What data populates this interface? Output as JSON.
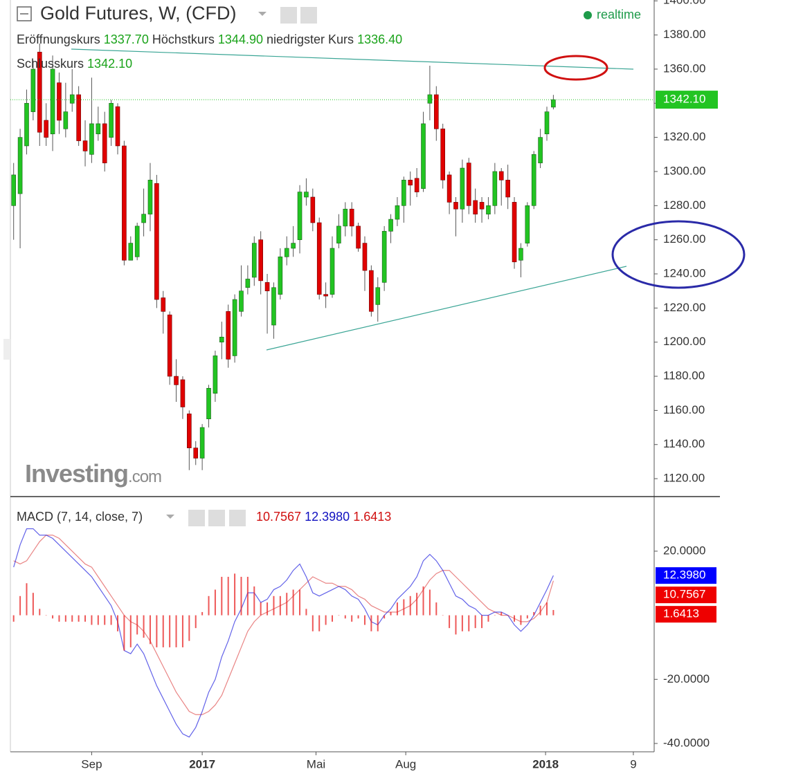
{
  "chart_data": [
    {
      "type": "candlestick",
      "title": "Gold Futures, W, (CFD)",
      "status": "realtime",
      "legend": [
        {
          "name": "Eröffnungskurs",
          "value": 1337.7,
          "label": "1337.70"
        },
        {
          "name": "Höchstkurs",
          "value": 1344.9,
          "label": "1344.90"
        },
        {
          "name": "niedrigster Kurs",
          "value": 1336.4,
          "label": "1336.40"
        },
        {
          "name": "Schlusskurs",
          "value": 1342.1,
          "label": "1342.10"
        }
      ],
      "watermark": {
        "name": "Investing",
        "suffix": ".com"
      },
      "colors": {
        "up": "#22c422",
        "down": "#e00000"
      },
      "last_label": "1342.10",
      "open": [
        1280,
        1287,
        1315,
        1335,
        1370,
        1330,
        1322,
        1352,
        1325,
        1340,
        1345,
        1318,
        1310,
        1322,
        1328,
        1320,
        1338,
        1315,
        1248,
        1250,
        1270,
        1275,
        1293,
        1226,
        1216,
        1180,
        1178,
        1158,
        1138,
        1132,
        1155,
        1170,
        1200,
        1218,
        1192,
        1218,
        1232,
        1238,
        1260,
        1235,
        1210,
        1228,
        1250,
        1255,
        1260,
        1285,
        1285,
        1270,
        1228,
        1228,
        1258,
        1268,
        1278,
        1268,
        1258,
        1242,
        1222,
        1235,
        1265,
        1272,
        1280,
        1295,
        1296,
        1290,
        1340,
        1345,
        1325,
        1298,
        1282,
        1278,
        1305,
        1283,
        1282,
        1275,
        1280,
        1300,
        1295,
        1282,
        1248,
        1258,
        1280,
        1305,
        1322,
        1337.7
      ],
      "high": [
        1305,
        1325,
        1348,
        1365,
        1375,
        1340,
        1368,
        1358,
        1352,
        1360,
        1350,
        1330,
        1355,
        1338,
        1335,
        1342,
        1340,
        1318,
        1262,
        1270,
        1290,
        1305,
        1298,
        1230,
        1218,
        1190,
        1180,
        1160,
        1142,
        1152,
        1175,
        1195,
        1212,
        1222,
        1228,
        1245,
        1245,
        1262,
        1265,
        1240,
        1235,
        1255,
        1262,
        1268,
        1292,
        1296,
        1290,
        1273,
        1235,
        1262,
        1275,
        1282,
        1282,
        1270,
        1262,
        1245,
        1238,
        1268,
        1275,
        1285,
        1297,
        1300,
        1302,
        1335,
        1362,
        1350,
        1328,
        1300,
        1285,
        1307,
        1308,
        1290,
        1285,
        1285,
        1305,
        1302,
        1304,
        1285,
        1258,
        1282,
        1312,
        1325,
        1338,
        1344.9
      ],
      "low": [
        1260,
        1255,
        1310,
        1330,
        1315,
        1315,
        1312,
        1322,
        1320,
        1335,
        1315,
        1303,
        1305,
        1318,
        1300,
        1315,
        1310,
        1245,
        1248,
        1248,
        1262,
        1265,
        1220,
        1205,
        1175,
        1165,
        1155,
        1125,
        1128,
        1125,
        1150,
        1165,
        1190,
        1185,
        1188,
        1215,
        1228,
        1233,
        1228,
        1205,
        1202,
        1225,
        1245,
        1250,
        1252,
        1280,
        1265,
        1225,
        1220,
        1226,
        1255,
        1262,
        1262,
        1253,
        1230,
        1215,
        1212,
        1230,
        1258,
        1268,
        1270,
        1280,
        1285,
        1288,
        1330,
        1318,
        1290,
        1275,
        1262,
        1270,
        1275,
        1270,
        1270,
        1272,
        1275,
        1280,
        1278,
        1243,
        1238,
        1256,
        1278,
        1302,
        1318,
        1336.4
      ],
      "close": [
        1298,
        1320,
        1340,
        1360,
        1323,
        1320,
        1360,
        1330,
        1335,
        1345,
        1318,
        1312,
        1328,
        1328,
        1305,
        1340,
        1315,
        1248,
        1258,
        1268,
        1275,
        1295,
        1225,
        1218,
        1180,
        1175,
        1162,
        1138,
        1132,
        1150,
        1173,
        1192,
        1203,
        1190,
        1225,
        1230,
        1237,
        1258,
        1236,
        1230,
        1232,
        1250,
        1255,
        1258,
        1288,
        1288,
        1270,
        1228,
        1227,
        1255,
        1268,
        1278,
        1268,
        1255,
        1242,
        1218,
        1232,
        1265,
        1272,
        1280,
        1295,
        1292,
        1288,
        1328,
        1345,
        1325,
        1295,
        1282,
        1278,
        1302,
        1280,
        1275,
        1278,
        1280,
        1300,
        1295,
        1285,
        1247,
        1255,
        1280,
        1310,
        1320,
        1335,
        1342.1
      ],
      "xlim": [
        -0.5,
        98.5
      ],
      "ylim": [
        1109.5,
        1400.5
      ],
      "yticks": [
        {
          "value": 1120,
          "label": "1120.00"
        },
        {
          "value": 1140,
          "label": "1140.00"
        },
        {
          "value": 1160,
          "label": "1160.00"
        },
        {
          "value": 1180,
          "label": "1180.00"
        },
        {
          "value": 1200,
          "label": "1200.00"
        },
        {
          "value": 1220,
          "label": "1220.00"
        },
        {
          "value": 1240,
          "label": "1240.00"
        },
        {
          "value": 1260,
          "label": "1260.00"
        },
        {
          "value": 1280,
          "label": "1280.00"
        },
        {
          "value": 1300,
          "label": "1300.00"
        },
        {
          "value": 1320,
          "label": "1320.00"
        },
        {
          "value": 1340,
          "label": "1340.00"
        },
        {
          "value": 1360,
          "label": "1360.00"
        },
        {
          "value": 1380,
          "label": "1380.00"
        },
        {
          "value": 1400,
          "label": "1400.00"
        }
      ]
    },
    {
      "type": "macd",
      "title": "MACD (7, 14, close, 7)",
      "series": [
        {
          "kind": "line",
          "color": "#e05050",
          "last_label": "10.7567",
          "values": [
            17,
            16,
            17,
            20,
            23,
            25,
            25,
            24,
            22,
            20,
            18,
            16,
            15,
            12,
            9,
            6,
            3,
            0,
            -2,
            -3,
            -5,
            -8,
            -12,
            -16,
            -20,
            -24,
            -27,
            -30,
            -31,
            -31,
            -30,
            -28,
            -25,
            -20,
            -15,
            -10,
            -5,
            -2,
            0,
            1,
            2,
            3,
            4,
            6,
            8,
            10,
            12,
            11,
            10,
            10,
            9,
            9,
            8,
            6,
            5,
            3,
            2,
            1,
            1,
            1,
            2,
            3,
            5,
            8,
            11,
            13,
            14,
            14,
            12,
            10,
            8,
            6,
            4,
            2,
            1,
            0,
            0,
            -1,
            -2,
            -2,
            -1,
            1,
            4,
            10.7567
          ]
        },
        {
          "kind": "line",
          "color": "#2020e0",
          "last_label": "12.3980",
          "values": [
            15,
            22,
            27,
            27,
            25,
            25,
            24,
            22,
            20,
            18,
            16,
            14,
            12,
            9,
            6,
            3,
            -2,
            -11,
            -12,
            -9,
            -12,
            -17,
            -22,
            -26,
            -30,
            -34,
            -37,
            -38,
            -35,
            -30,
            -24,
            -20,
            -13,
            -8,
            -2,
            2,
            7,
            7,
            4,
            5,
            8,
            9,
            11,
            14,
            16,
            12,
            7,
            6,
            7,
            8,
            9,
            8,
            6,
            5,
            2,
            -2,
            -3,
            0,
            2,
            5,
            7,
            9,
            12,
            17,
            19,
            17,
            14,
            10,
            6,
            5,
            3,
            2,
            0,
            0,
            1,
            1,
            0,
            -3,
            -5,
            -3,
            0,
            4,
            8,
            12.398
          ]
        },
        {
          "kind": "bar",
          "color": "#e82020",
          "last_label": "1.6413",
          "values": [
            -2,
            6,
            10,
            7,
            2,
            0,
            -1,
            -2,
            -2,
            -2,
            -2,
            -2,
            -3,
            -3,
            -3,
            -3,
            -5,
            -11,
            -10,
            -6,
            -7,
            -9,
            -10,
            -10,
            -10,
            -10,
            -10,
            -8,
            -4,
            1,
            6,
            8,
            12,
            12,
            13,
            12,
            12,
            9,
            4,
            4,
            6,
            6,
            7,
            8,
            8,
            2,
            -5,
            -5,
            -3,
            -2,
            0,
            -1,
            -2,
            -1,
            -3,
            -5,
            -5,
            -1,
            1,
            4,
            5,
            6,
            7,
            9,
            8,
            4,
            0,
            -4,
            -6,
            -5,
            -5,
            -4,
            -4,
            -2,
            0,
            1,
            0,
            -2,
            -3,
            -1,
            1,
            3,
            4,
            1.6413
          ]
        }
      ],
      "xlim": [
        -0.5,
        98.5
      ],
      "ylim": [
        -42.6,
        36.6
      ],
      "yticks": [
        {
          "value": 20,
          "label": "20.0000"
        },
        {
          "value": -20,
          "label": "-20.0000"
        },
        {
          "value": -40,
          "label": "-40.0000"
        }
      ],
      "xticks": [
        {
          "value": 12,
          "label": "Sep"
        },
        {
          "value": 29,
          "label": "2017"
        },
        {
          "value": 46.5,
          "label": "Mai"
        },
        {
          "value": 60.3,
          "label": "Aug"
        },
        {
          "value": 81.8,
          "label": "2018"
        },
        {
          "value": 95.3,
          "label": "9"
        }
      ]
    }
  ]
}
